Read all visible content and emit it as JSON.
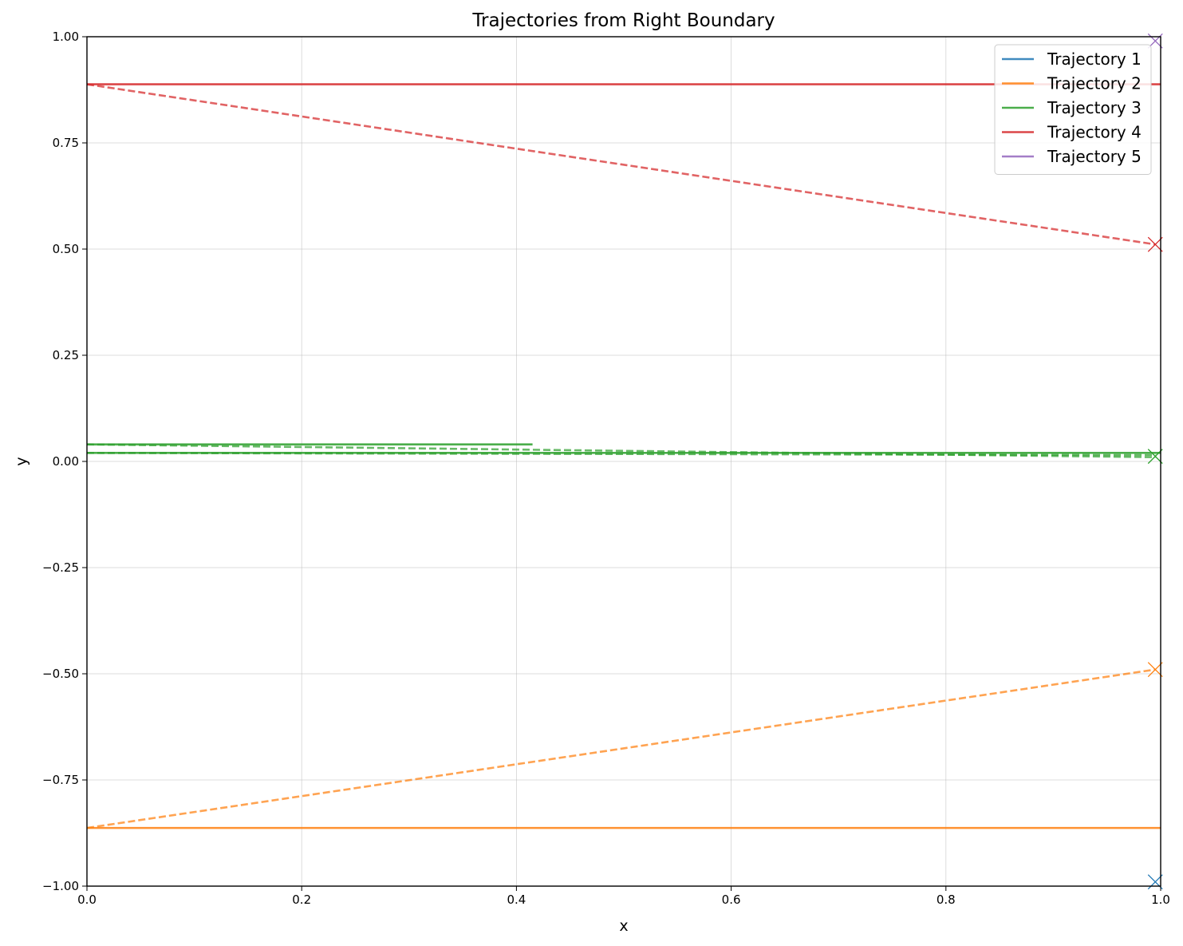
{
  "chart_data": {
    "type": "line",
    "title": "Trajectories from Right Boundary",
    "xlabel": "x",
    "ylabel": "y",
    "xlim": [
      0.0,
      1.0
    ],
    "ylim": [
      -1.0,
      1.0
    ],
    "xticks": [
      "0.0",
      "0.2",
      "0.4",
      "0.6",
      "0.8",
      "1.0"
    ],
    "yticks": [
      "−1.00",
      "−0.75",
      "−0.50",
      "−0.25",
      "0.00",
      "0.25",
      "0.50",
      "0.75",
      "1.00"
    ],
    "grid": true,
    "legend_position": "top-right",
    "series": [
      {
        "name": "Trajectory 1",
        "color": "#1f77b4",
        "segments": [],
        "end_marker": {
          "x": 0.995,
          "y": -0.99
        }
      },
      {
        "name": "Trajectory 2",
        "color": "#ff7f0e",
        "segments": [
          {
            "style": "solid",
            "x": [
              0.0,
              1.0
            ],
            "y": [
              -0.863,
              -0.863
            ]
          },
          {
            "style": "dashed",
            "x": [
              0.0,
              0.995
            ],
            "y": [
              -0.863,
              -0.49
            ]
          }
        ],
        "end_marker": {
          "x": 0.995,
          "y": -0.49
        }
      },
      {
        "name": "Trajectory 3",
        "color": "#2ca02c",
        "segments": [
          {
            "style": "solid",
            "x": [
              0.0,
              0.415
            ],
            "y": [
              0.04,
              0.04
            ]
          },
          {
            "style": "dashed",
            "x": [
              0.0,
              0.995
            ],
            "y": [
              0.04,
              0.01
            ]
          },
          {
            "style": "solid",
            "x": [
              0.0,
              1.0
            ],
            "y": [
              0.02,
              0.02
            ]
          },
          {
            "style": "dashed",
            "x": [
              0.0,
              0.995
            ],
            "y": [
              0.02,
              0.015
            ]
          }
        ],
        "end_marker": {
          "x": 0.995,
          "y": 0.012
        }
      },
      {
        "name": "Trajectory 4",
        "color": "#d62728",
        "segments": [
          {
            "style": "solid",
            "x": [
              0.0,
              1.0
            ],
            "y": [
              0.888,
              0.888
            ]
          },
          {
            "style": "dashed",
            "x": [
              0.0,
              0.995
            ],
            "y": [
              0.888,
              0.511
            ]
          }
        ],
        "end_marker": {
          "x": 0.995,
          "y": 0.511
        }
      },
      {
        "name": "Trajectory 5",
        "color": "#9467bd",
        "segments": [],
        "end_marker": {
          "x": 0.995,
          "y": 0.99
        }
      }
    ]
  }
}
